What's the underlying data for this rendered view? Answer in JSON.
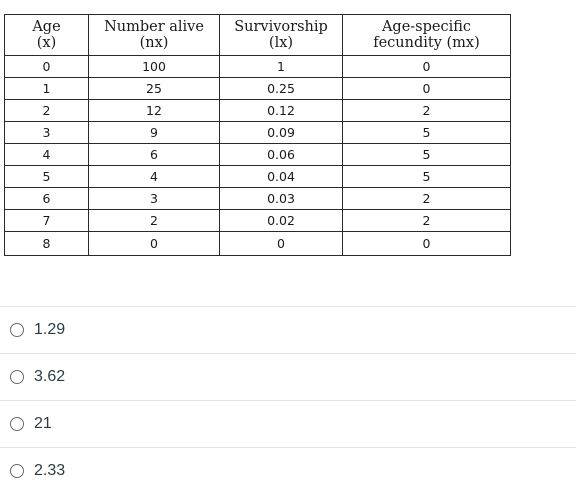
{
  "table": {
    "headers": [
      {
        "line1": "Age",
        "line2": "(x)"
      },
      {
        "line1": "Number alive",
        "line2": "(nx)"
      },
      {
        "line1": "Survivorship",
        "line2": "(lx)"
      },
      {
        "line1": "Age-specific",
        "line2": "fecundity (mx)"
      }
    ],
    "rows": [
      [
        "0",
        "100",
        "1",
        "0"
      ],
      [
        "1",
        "25",
        "0.25",
        "0"
      ],
      [
        "2",
        "12",
        "0.12",
        "2"
      ],
      [
        "3",
        "9",
        "0.09",
        "5"
      ],
      [
        "4",
        "6",
        "0.06",
        "5"
      ],
      [
        "5",
        "4",
        "0.04",
        "5"
      ],
      [
        "6",
        "3",
        "0.03",
        "2"
      ],
      [
        "7",
        "2",
        "0.02",
        "2"
      ],
      [
        "8",
        "0",
        "0",
        "0"
      ]
    ]
  },
  "options": [
    {
      "label": "1.29"
    },
    {
      "label": "3.62"
    },
    {
      "label": "21"
    },
    {
      "label": "2.33"
    }
  ]
}
